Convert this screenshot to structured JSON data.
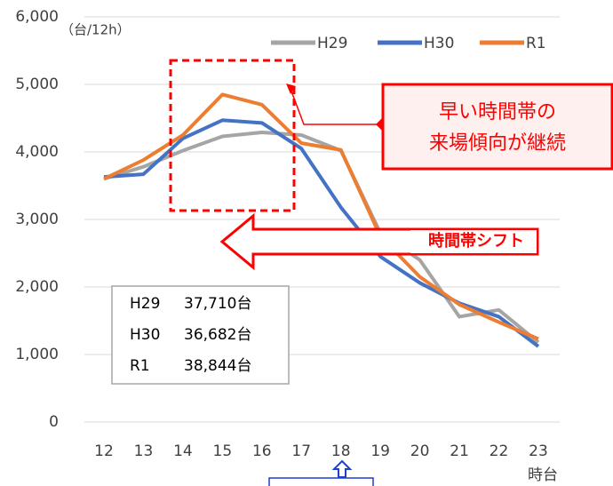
{
  "chart_data": {
    "type": "line",
    "y_unit": "（台/12h）",
    "x_label": "時台",
    "categories": [
      "12",
      "13",
      "14",
      "15",
      "16",
      "17",
      "18",
      "19",
      "20",
      "21",
      "22",
      "23"
    ],
    "series": [
      {
        "name": "H29",
        "color": "#a5a5a5",
        "values": [
          3600,
          3780,
          4020,
          4230,
          4290,
          4250,
          4020,
          2800,
          2400,
          1560,
          1660,
          1180
        ]
      },
      {
        "name": "H30",
        "color": "#4472c4",
        "values": [
          3630,
          3670,
          4200,
          4470,
          4430,
          4050,
          3180,
          2450,
          2060,
          1760,
          1560,
          1120
        ]
      },
      {
        "name": "R1",
        "color": "#ed7d31",
        "values": [
          3600,
          3880,
          4250,
          4850,
          4700,
          4130,
          4030,
          2750,
          2150,
          1740,
          1480,
          1230
        ]
      }
    ],
    "ylim": [
      0,
      6000
    ],
    "yticks": [
      0,
      {
        "value": 1000,
        "label": "1,000"
      },
      {
        "value": 2000,
        "label": "2,000"
      },
      {
        "value": 3000,
        "label": "3,000"
      },
      {
        "value": 4000,
        "label": "4,000"
      },
      {
        "value": 5000,
        "label": "5,000"
      },
      {
        "value": 6000,
        "label": "6,000"
      }
    ],
    "grid": true,
    "callout": [
      "早い時間帯の",
      "来場傾向が継続"
    ],
    "shift_label": "時間帯シフト",
    "totals": [
      {
        "name": "H29",
        "total": "37,710台"
      },
      {
        "name": "H30",
        "total": "36,682台"
      },
      {
        "name": "R1",
        "total": "38,844台"
      }
    ]
  }
}
